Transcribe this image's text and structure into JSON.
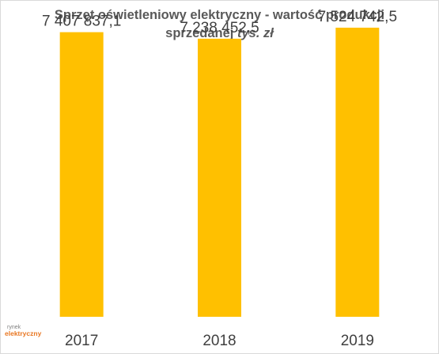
{
  "chart_data": {
    "type": "bar",
    "title_main": "Sprzęt oświetleniowy elektryczny - wartość produkcji",
    "title_line2": "sprzedanej",
    "title_unit": "tys. zł",
    "categories": [
      "2017",
      "2018",
      "2019"
    ],
    "values": [
      7407837.1,
      7238452.5,
      7524742.5
    ],
    "value_labels": [
      "7 407 837,1",
      "7 238 452,5",
      "7 524 742,5"
    ],
    "bar_color": "#ffc000",
    "ylim": [
      0,
      7936000
    ],
    "grid": false,
    "legend": "none",
    "xlabel": "",
    "ylabel": ""
  },
  "logo": {
    "line1": "rynek",
    "line2": "elektryczny"
  }
}
